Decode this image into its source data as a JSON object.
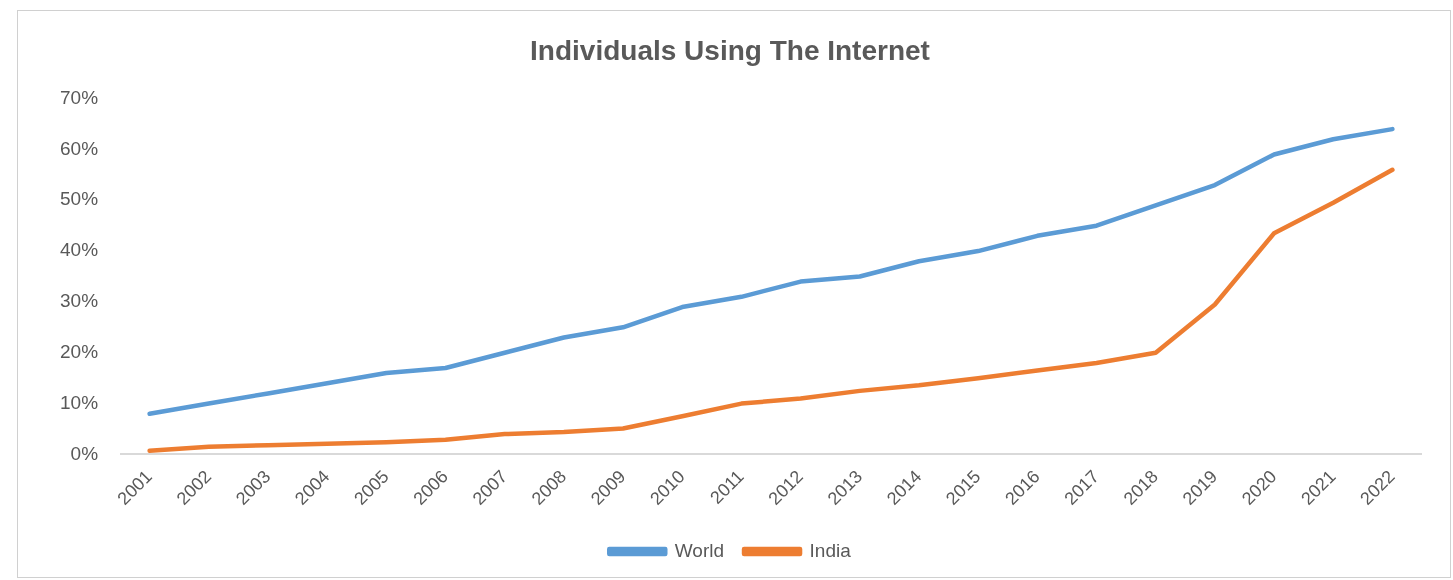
{
  "chart_data": {
    "type": "line",
    "title": "Individuals Using The Internet",
    "categories": [
      "2001",
      "2002",
      "2003",
      "2004",
      "2005",
      "2006",
      "2007",
      "2008",
      "2009",
      "2010",
      "2011",
      "2012",
      "2013",
      "2014",
      "2015",
      "2016",
      "2017",
      "2018",
      "2019",
      "2020",
      "2021",
      "2022"
    ],
    "series": [
      {
        "name": "World",
        "color": "#5b9bd5",
        "values": [
          8,
          10,
          12,
          14,
          16,
          17,
          20,
          23,
          25,
          29,
          31,
          34,
          35,
          38,
          40,
          43,
          45,
          49,
          53,
          59,
          62,
          64
        ]
      },
      {
        "name": "India",
        "color": "#ed7d31",
        "values": [
          0.7,
          1.5,
          1.8,
          2.1,
          2.4,
          2.9,
          4,
          4.4,
          5.1,
          7.5,
          10,
          11,
          12.5,
          13.6,
          15,
          16.5,
          18,
          20,
          29.5,
          43.5,
          49.5,
          56
        ]
      }
    ],
    "ylim": [
      0,
      70
    ],
    "yticks": [
      {
        "value": 0,
        "label": "0%"
      },
      {
        "value": 10,
        "label": "10%"
      },
      {
        "value": 20,
        "label": "20%"
      },
      {
        "value": 30,
        "label": "30%"
      },
      {
        "value": 40,
        "label": "40%"
      },
      {
        "value": 50,
        "label": "50%"
      },
      {
        "value": 60,
        "label": "60%"
      },
      {
        "value": 70,
        "label": "70%"
      }
    ],
    "grid": false,
    "legend": "bottom",
    "marker": "none",
    "line_style": "solid"
  }
}
